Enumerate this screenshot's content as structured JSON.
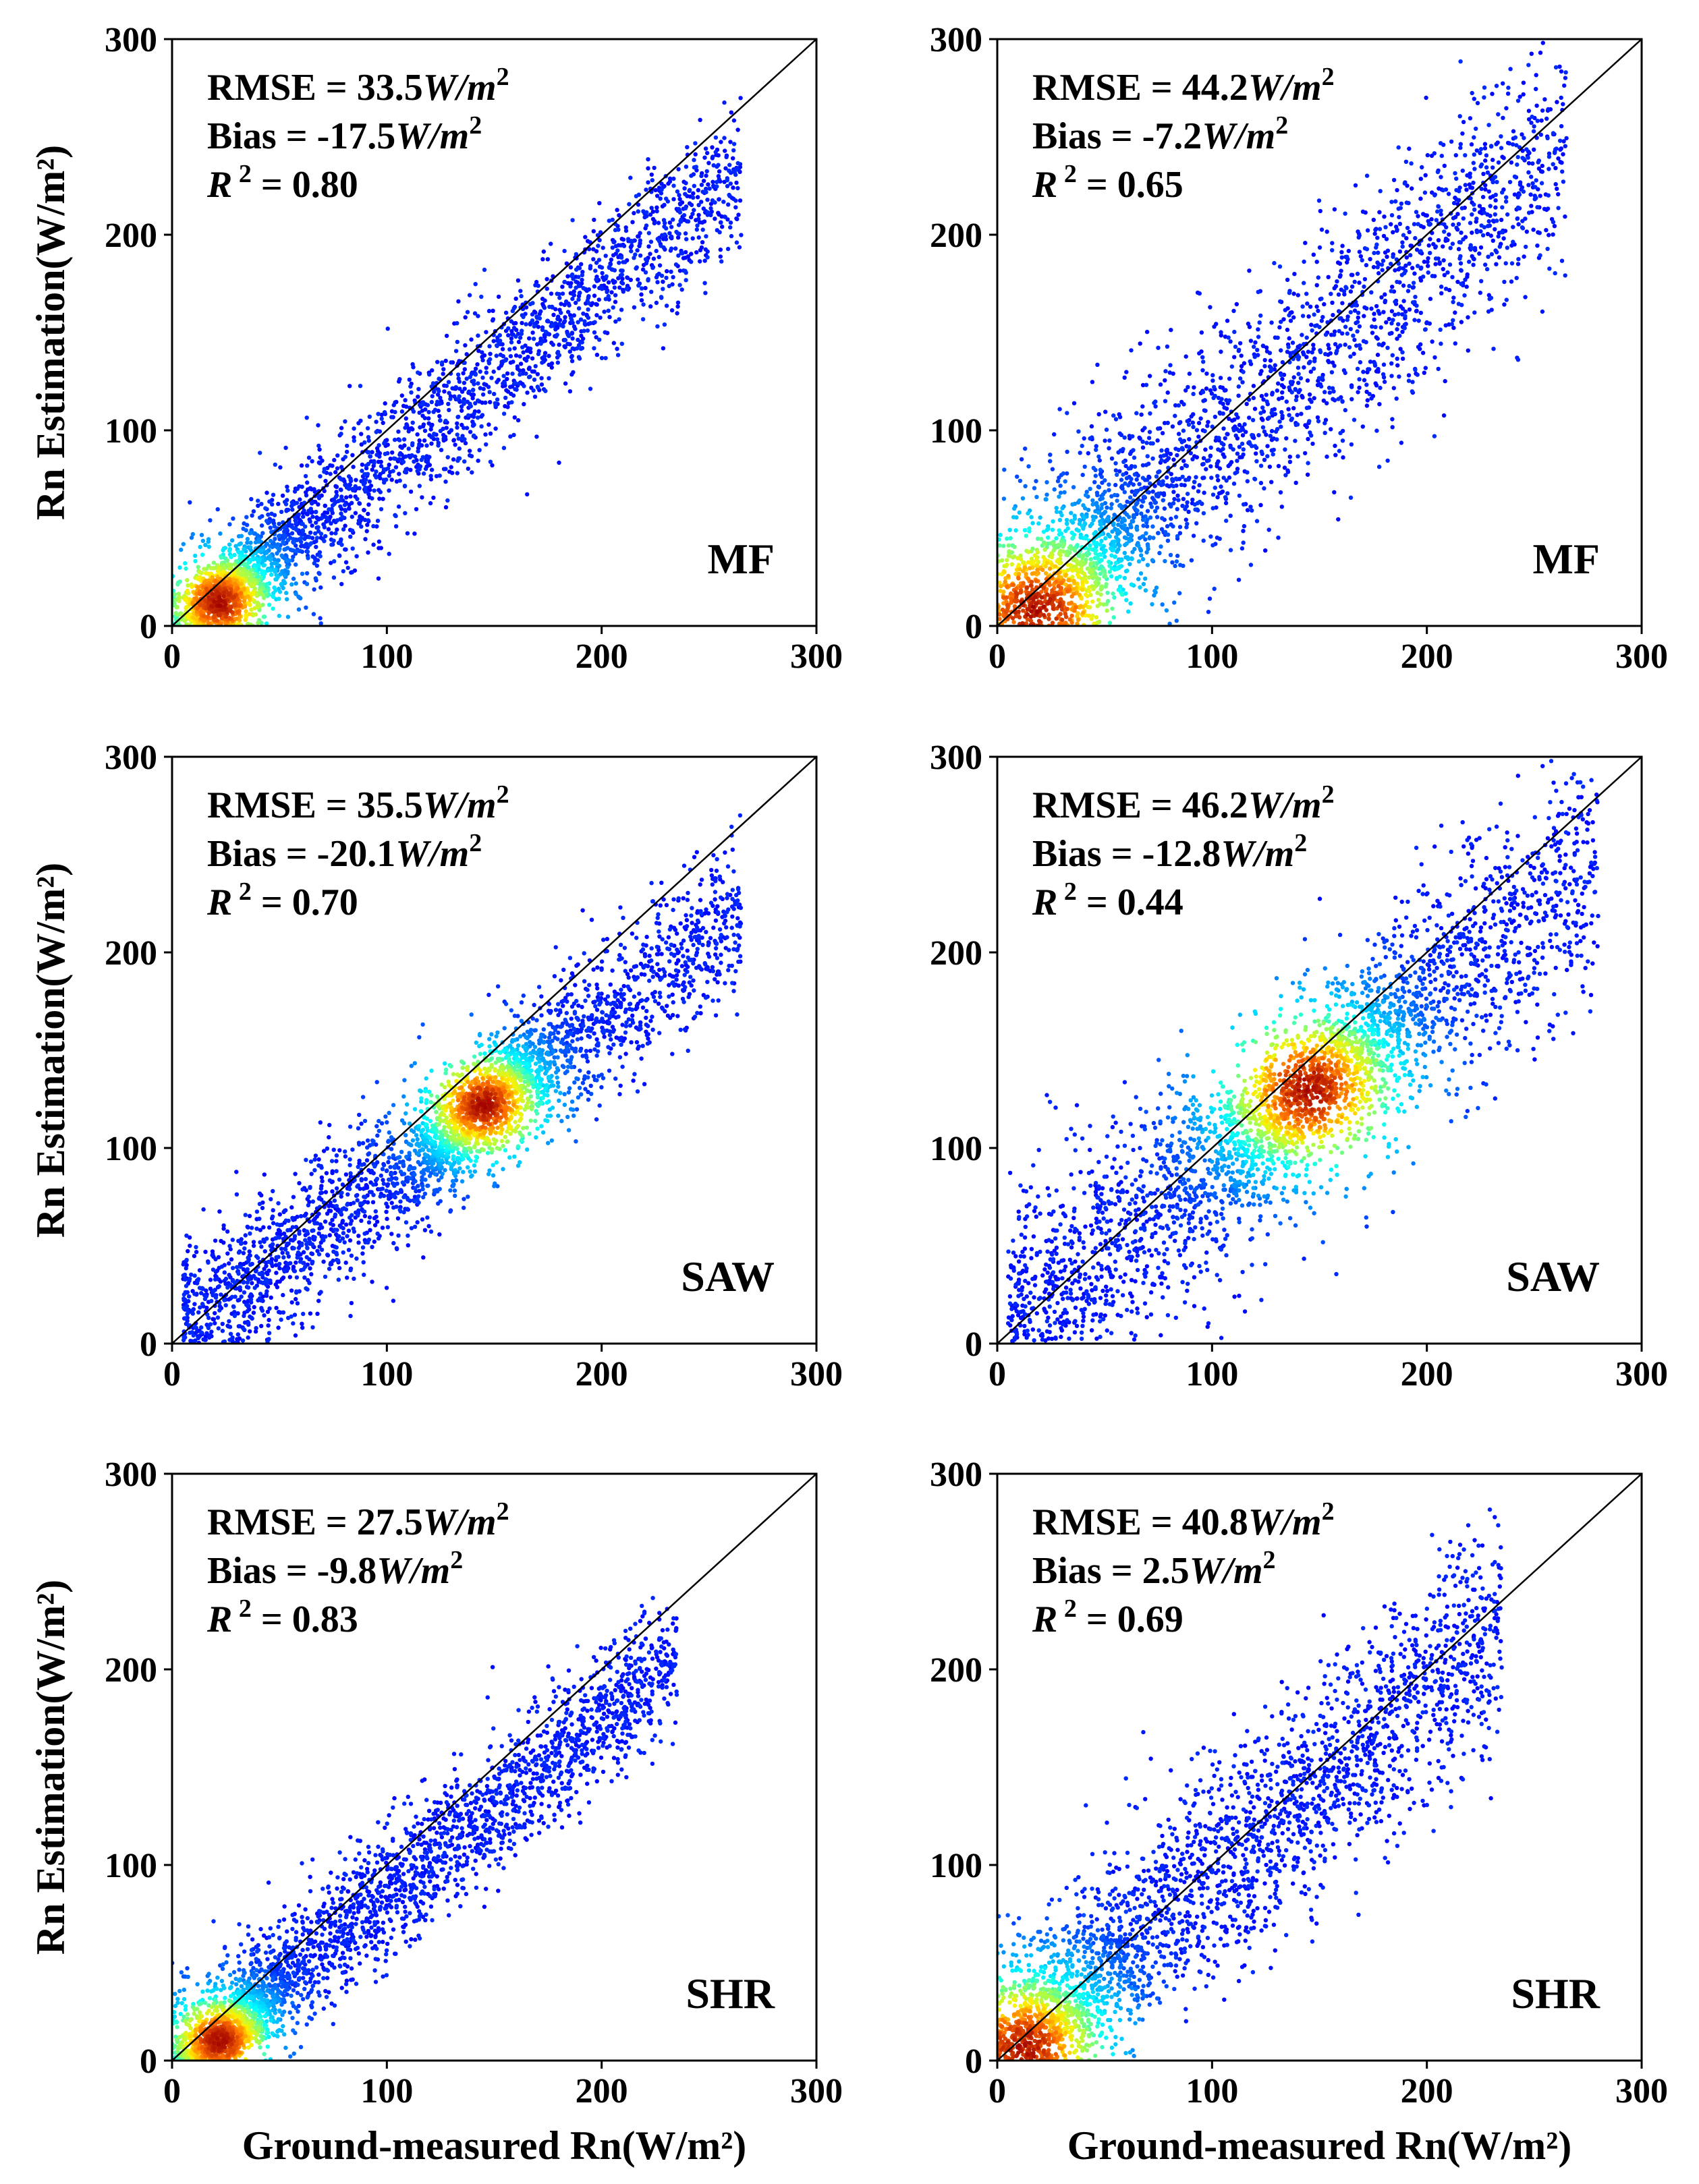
{
  "chart_data": [
    {
      "type": "scatter",
      "panel": "top-left",
      "class_label": "MF",
      "stats": {
        "rmse_label": "RMSE = ",
        "rmse_value": "33.5",
        "bias_label": "Bias = ",
        "bias_value": "-17.5",
        "unit": "W/m",
        "unit_exp": "2",
        "r2_symbol": "R",
        "r2_exp": "2",
        "r2_value": " = 0.80"
      },
      "xlim": [
        0,
        300
      ],
      "ylim": [
        0,
        300
      ],
      "x_ticks": [
        "0",
        "100",
        "200",
        "300"
      ],
      "y_ticks": [
        "0",
        "100",
        "200",
        "300"
      ],
      "ylabel": "Rn Estimation(W/m²)",
      "xlabel": "",
      "reference_line": "1:1",
      "density_core": {
        "x": 22,
        "y": 12
      },
      "point_cloud": {
        "slope": 0.9,
        "intercept": -6,
        "spread": 18,
        "x_range": [
          0,
          265
        ],
        "count": 2400
      }
    },
    {
      "type": "scatter",
      "panel": "top-right",
      "class_label": "MF",
      "stats": {
        "rmse_label": "RMSE = ",
        "rmse_value": "44.2",
        "bias_label": "Bias = ",
        "bias_value": "-7.2",
        "unit": "W/m",
        "unit_exp": "2",
        "r2_symbol": "R",
        "r2_exp": "2",
        "r2_value": " = 0.65"
      },
      "xlim": [
        0,
        300
      ],
      "ylim": [
        0,
        300
      ],
      "x_ticks": [
        "0",
        "100",
        "200",
        "300"
      ],
      "y_ticks": [
        "0",
        "100",
        "200",
        "300"
      ],
      "ylabel": "",
      "xlabel": "",
      "reference_line": "1:1",
      "density_core": {
        "x": 18,
        "y": 8
      },
      "point_cloud": {
        "slope": 0.92,
        "intercept": 2,
        "spread": 30,
        "x_range": [
          0,
          265
        ],
        "count": 2400
      }
    },
    {
      "type": "scatter",
      "panel": "middle-left",
      "class_label": "SAW",
      "stats": {
        "rmse_label": "RMSE = ",
        "rmse_value": "35.5",
        "bias_label": "Bias = ",
        "bias_value": "-20.1",
        "unit": "W/m",
        "unit_exp": "2",
        "r2_symbol": "R",
        "r2_exp": "2",
        "r2_value": " = 0.70"
      },
      "xlim": [
        0,
        300
      ],
      "ylim": [
        0,
        300
      ],
      "x_ticks": [
        "0",
        "100",
        "200",
        "300"
      ],
      "y_ticks": [
        "0",
        "100",
        "200",
        "300"
      ],
      "ylabel": "Rn Estimation(W/m²)",
      "xlabel": "",
      "reference_line": "1:1",
      "density_core": {
        "x": 145,
        "y": 122
      },
      "point_cloud": {
        "slope": 0.82,
        "intercept": 2,
        "spread": 20,
        "x_range": [
          5,
          265
        ],
        "count": 2400
      }
    },
    {
      "type": "scatter",
      "panel": "middle-right",
      "class_label": "SAW",
      "stats": {
        "rmse_label": "RMSE = ",
        "rmse_value": "46.2",
        "bias_label": "Bias = ",
        "bias_value": "-12.8",
        "unit": "W/m",
        "unit_exp": "2",
        "r2_symbol": "R",
        "r2_exp": "2",
        "r2_value": " = 0.44"
      },
      "xlim": [
        0,
        300
      ],
      "ylim": [
        0,
        300
      ],
      "x_ticks": [
        "0",
        "100",
        "200",
        "300"
      ],
      "y_ticks": [
        "0",
        "100",
        "200",
        "300"
      ],
      "ylabel": "",
      "xlabel": "",
      "reference_line": "1:1",
      "density_core": {
        "x": 145,
        "y": 130
      },
      "point_cloud": {
        "slope": 0.85,
        "intercept": 5,
        "spread": 30,
        "x_range": [
          5,
          280
        ],
        "count": 2400
      }
    },
    {
      "type": "scatter",
      "panel": "bottom-left",
      "class_label": "SHR",
      "stats": {
        "rmse_label": "RMSE = ",
        "rmse_value": "27.5",
        "bias_label": "Bias = ",
        "bias_value": "-9.8",
        "unit": "W/m",
        "unit_exp": "2",
        "r2_symbol": "R",
        "r2_exp": "2",
        "r2_value": " = 0.83"
      },
      "xlim": [
        0,
        300
      ],
      "ylim": [
        0,
        300
      ],
      "x_ticks": [
        "0",
        "100",
        "200",
        "300"
      ],
      "y_ticks": [
        "0",
        "100",
        "200",
        "300"
      ],
      "ylabel": "Rn Estimation(W/m²)",
      "xlabel": "Ground-measured Rn(W/m²)",
      "reference_line": "1:1",
      "density_core": {
        "x": 22,
        "y": 10
      },
      "point_cloud": {
        "slope": 0.88,
        "intercept": -2,
        "spread": 17,
        "x_range": [
          0,
          235
        ],
        "count": 2400
      }
    },
    {
      "type": "scatter",
      "panel": "bottom-right",
      "class_label": "SHR",
      "stats": {
        "rmse_label": "RMSE = ",
        "rmse_value": "40.8",
        "bias_label": "Bias = ",
        "bias_value": "2.5",
        "unit": "W/m",
        "unit_exp": "2",
        "r2_symbol": "R",
        "r2_exp": "2",
        "r2_value": " = 0.69"
      },
      "xlim": [
        0,
        300
      ],
      "ylim": [
        0,
        300
      ],
      "x_ticks": [
        "0",
        "100",
        "200",
        "300"
      ],
      "y_ticks": [
        "0",
        "100",
        "200",
        "300"
      ],
      "ylabel": "",
      "xlabel": "Ground-measured Rn(W/m²)",
      "reference_line": "1:1",
      "density_core": {
        "x": 12,
        "y": 6
      },
      "point_cloud": {
        "slope": 0.95,
        "intercept": 0,
        "spread": 28,
        "x_range": [
          0,
          235
        ],
        "count": 2400
      }
    }
  ],
  "colors": {
    "low": "#0000ff",
    "mid": "#00ffff",
    "high": "#ffff00",
    "peak": "#aa0000",
    "axis": "#000000",
    "background": "#ffffff"
  }
}
